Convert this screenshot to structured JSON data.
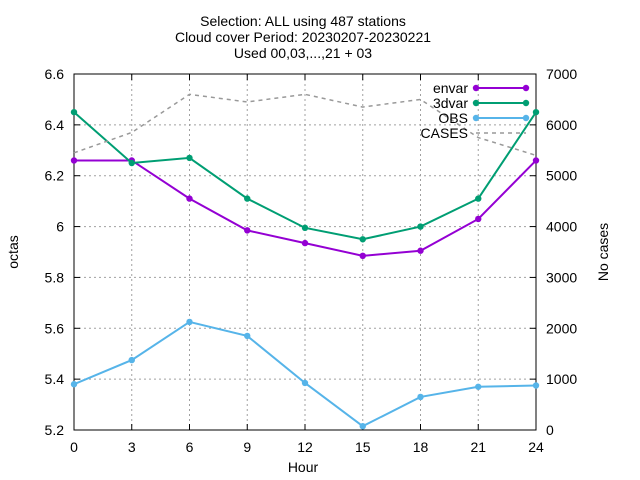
{
  "title_lines": [
    "Selection: ALL using   487 stations",
    "Cloud cover   Period: 20230207-20230221",
    "Used 00,03,...,21 + 03"
  ],
  "chart_data": {
    "type": "line",
    "xlabel": "Hour",
    "ylabel": "octas",
    "y2label": "No cases",
    "x": [
      0,
      3,
      6,
      9,
      12,
      15,
      18,
      21,
      24
    ],
    "xlim": [
      0,
      24
    ],
    "ylim": [
      5.2,
      6.6
    ],
    "y2lim": [
      0,
      7000
    ],
    "xticks": [
      "0",
      "3",
      "6",
      "9",
      "12",
      "15",
      "18",
      "21",
      "24"
    ],
    "yticks": [
      "5.2",
      "5.4",
      "5.6",
      "5.8",
      "6",
      "6.2",
      "6.4",
      "6.6"
    ],
    "y2ticks": [
      "0",
      "1000",
      "2000",
      "3000",
      "4000",
      "5000",
      "6000",
      "7000"
    ],
    "grid": true,
    "legend_position": "top-right",
    "series": [
      {
        "name": "envar",
        "axis": "y",
        "color": "#9400d3",
        "marker": "circle",
        "values": [
          6.26,
          6.26,
          6.11,
          5.985,
          5.935,
          5.885,
          5.905,
          6.03,
          6.26
        ]
      },
      {
        "name": "3dvar",
        "axis": "y",
        "color": "#009e73",
        "marker": "circle",
        "values": [
          6.45,
          6.25,
          6.27,
          6.11,
          5.995,
          5.95,
          6.0,
          6.11,
          6.45
        ]
      },
      {
        "name": "OBS",
        "axis": "y",
        "color": "#56b4e9",
        "marker": "circle",
        "values": [
          5.38,
          5.475,
          5.625,
          5.57,
          5.385,
          5.215,
          5.33,
          5.37,
          5.375
        ]
      },
      {
        "name": "CASES",
        "axis": "y2",
        "color": "#999999",
        "dashed": true,
        "values": [
          5450,
          5850,
          6600,
          6450,
          6600,
          6350,
          6500,
          5750,
          5400
        ]
      }
    ]
  }
}
